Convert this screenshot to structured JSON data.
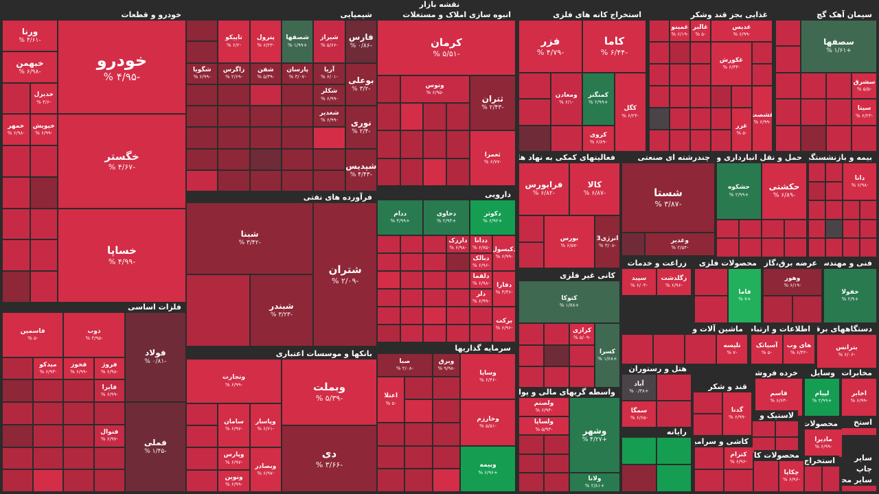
{
  "title": "نقشه بازار",
  "colors": {
    "background": "#2b2b2b",
    "strong_negative": "#d32d47",
    "negative": "#b2283f",
    "weak_negative": "#8e2737",
    "neutral": "#4a4448",
    "positive": "#2a7a50",
    "strong_positive": "#159e52"
  },
  "sectors": [
    {
      "title": "خودرو و قطعات",
      "tiles": [
        {
          "name": "خودرو",
          "pct": "-۴/۹۵ %"
        },
        {
          "name": "خگستر",
          "pct": "-۴/۶۷ %"
        },
        {
          "name": "خساپا",
          "pct": "-۴/۹۹ %"
        },
        {
          "name": "ورنا",
          "pct": "-۴/۶۱ %"
        },
        {
          "name": "خبهمن",
          "pct": "-۶/۹۸ %"
        },
        {
          "name": "خدیزل",
          "pct": "-۴/۶ %"
        },
        {
          "name": "خپویش",
          "pct": "-۶/۹۹ %"
        },
        {
          "name": "خمهر",
          "pct": "-۶/۹۸ %"
        }
      ]
    },
    {
      "title": "شیمیایی",
      "tiles": [
        {
          "name": "فارس",
          "pct": "-۰/۸۶ %"
        },
        {
          "name": "بوعلی",
          "pct": "-۳/۲ %"
        },
        {
          "name": "نوری",
          "pct": "-۲/۴ %"
        },
        {
          "name": "شپدیس",
          "pct": "-۴/۴۳ %"
        },
        {
          "name": "شیراز",
          "pct": "-۵/۶۶ %"
        },
        {
          "name": "شصفها",
          "pct": "+۱/۹۹ %"
        },
        {
          "name": "پترول",
          "pct": "-۶/۲۳ %"
        },
        {
          "name": "تاپیکو",
          "pct": "-۶/۲ %"
        },
        {
          "name": "آریا",
          "pct": "-۶/۰۱ %"
        },
        {
          "name": "پارسان",
          "pct": "-۳/۰۷ %"
        },
        {
          "name": "شفن",
          "pct": "-۵/۳۹ %"
        },
        {
          "name": "زاگرس",
          "pct": "-۲/۶۹ %"
        },
        {
          "name": "شگویا",
          "pct": "-۶/۹۹ %"
        },
        {
          "name": "شکلر",
          "pct": "-۶/۹۹ %"
        },
        {
          "name": "شغدیر",
          "pct": "-۶/۹۹ %"
        }
      ]
    },
    {
      "title": "انبوه سازی املاک و مستغلات",
      "tiles": [
        {
          "name": "کرمان",
          "pct": "-۵/۵۱ %"
        },
        {
          "name": "ثتران",
          "pct": "-۲/۴۳ %"
        },
        {
          "name": "وتوس",
          "pct": "-۶/۹۵ %"
        },
        {
          "name": "ثعمرا",
          "pct": "-۶/۷۷ %"
        }
      ]
    },
    {
      "title": "استخراج کانه های فلزی",
      "tiles": [
        {
          "name": "کاما",
          "pct": "-۶/۴۴ %"
        },
        {
          "name": "فزر",
          "pct": "-۴/۷۹ %"
        },
        {
          "name": "کگل",
          "pct": "-۶/۲۴ %"
        },
        {
          "name": "کمنگنز",
          "pct": "+۲/۹۹ %"
        },
        {
          "name": "ومعادن",
          "pct": "-۶/۱ %"
        },
        {
          "name": "کروی",
          "pct": "-۶/۸۹ %"
        }
      ]
    },
    {
      "title": "غذایی بجز قند وشکر",
      "tiles": [
        {
          "name": "غدیس",
          "pct": "-۶/۹۹ %"
        },
        {
          "name": "غالبر",
          "pct": "-۵ %"
        },
        {
          "name": "غمینو",
          "pct": "-۶/۱۹ %"
        },
        {
          "name": "غکورش",
          "pct": "-۶/۳۴ %"
        },
        {
          "name": "غشصت",
          "pct": "-۶/۹۹ %"
        },
        {
          "name": "غزر",
          "pct": "-۵ %"
        }
      ]
    },
    {
      "title": "سیمان آهک گچ",
      "tiles": [
        {
          "name": "سصفها",
          "pct": "+۱/۶۱ %"
        },
        {
          "name": "سشرق",
          "pct": "-۵/۵ %"
        },
        {
          "name": "سیتا",
          "pct": "-۶/۲۳ %"
        }
      ]
    },
    {
      "title": "فرآورده های نفتی",
      "tiles": [
        {
          "name": "شتران",
          "pct": "-۲/۰۹ %"
        },
        {
          "name": "شبنا",
          "pct": "-۳/۴۲ %"
        },
        {
          "name": "شبندر",
          "pct": "-۳/۲۳ %"
        }
      ]
    },
    {
      "title": "دارویی",
      "tiles": [
        {
          "name": "دکوثر",
          "pct": "+۶/۹۲ %"
        },
        {
          "name": "دحاوی",
          "pct": "+۲/۹۴ %"
        },
        {
          "name": "ددام",
          "pct": "+۴/۹۹ %"
        },
        {
          "name": "دکیسول",
          "pct": "-۶/۹۹ %"
        },
        {
          "name": "ددانا",
          "pct": "-۶/۷۵ %"
        },
        {
          "name": "دارزک",
          "pct": "-۶/۹۸ %"
        },
        {
          "name": "دفارا",
          "pct": "-۳/۳۶ %"
        },
        {
          "name": "دبالک",
          "pct": "-۶/۹۶ %"
        },
        {
          "name": "دلقما",
          "pct": "-۶/۹۸ %"
        },
        {
          "name": "برکت",
          "pct": "-۶/۹۶ %"
        },
        {
          "name": "دلر",
          "pct": "-۶/۹۹ %"
        }
      ]
    },
    {
      "title": "فعالیتهای کمکی به نهاد های مالی",
      "tiles": [
        {
          "name": "کالا",
          "pct": "-۶/۸۷ %"
        },
        {
          "name": "فرابورس",
          "pct": "-۶/۸۲ %"
        },
        {
          "name": "انرژی3",
          "pct": "-۳/۰۸ %"
        },
        {
          "name": "بورس",
          "pct": "-۶/۵۷ %"
        }
      ]
    },
    {
      "title": "چندرشته ای صنعتی",
      "tiles": [
        {
          "name": "شستا",
          "pct": "-۳/۸۷ %"
        },
        {
          "name": "وغدیر",
          "pct": "-۲/۵۴ %"
        }
      ]
    },
    {
      "title": "حمل و نقل انبارداری و",
      "tiles": [
        {
          "name": "حکشتی",
          "pct": "-۶/۸۹ %"
        },
        {
          "name": "حشکوه",
          "pct": "+۲/۹۹ %"
        }
      ]
    },
    {
      "title": "بیمه و بازنشستگی",
      "tiles": [
        {
          "name": "دانا",
          "pct": "-۶/۹۸ %"
        }
      ]
    },
    {
      "title": "فلزات اساسی",
      "tiles": [
        {
          "name": "فولاد",
          "pct": "-۰/۸۱ %"
        },
        {
          "name": "فملی",
          "pct": "-۱/۴۵ %"
        },
        {
          "name": "ذوب",
          "pct": "-۴/۹۵ %"
        },
        {
          "name": "فاسمین",
          "pct": "-۵ %"
        },
        {
          "name": "فروژ",
          "pct": "-۶/۹۸ %"
        },
        {
          "name": "فخوز",
          "pct": "-۶/۹۹ %"
        },
        {
          "name": "میدکو",
          "pct": "-۶/۹۳ %"
        },
        {
          "name": "فایرا",
          "pct": "-۶/۹۹ %"
        },
        {
          "name": "فنوال",
          "pct": "-۶/۹۷ %"
        }
      ]
    },
    {
      "title": "بانکها و موسسات اعتباری",
      "tiles": [
        {
          "name": "وبملت",
          "pct": "-۵/۳۹ %"
        },
        {
          "name": "وتجارت",
          "pct": "-۶/۹۹ %"
        },
        {
          "name": "دی",
          "pct": "-۳/۶۶ %"
        },
        {
          "name": "وپاسار",
          "pct": "-۶/۶۱ %"
        },
        {
          "name": "سامان",
          "pct": "-۶/۹۷ %"
        },
        {
          "name": "وپارس",
          "pct": "-۶/۹۷ %"
        },
        {
          "name": "وبصادر",
          "pct": "-۶/۹۷ %"
        },
        {
          "name": "ونوین",
          "pct": "-۶/۹۹ %"
        }
      ]
    },
    {
      "title": "سرمایه گذاریها",
      "tiles": [
        {
          "name": "وسایا",
          "pct": "-۶/۴۶ %"
        },
        {
          "name": "وبرق",
          "pct": "-۹/۹۸ %"
        },
        {
          "name": "صبا",
          "pct": "-۲/۰۸ %"
        },
        {
          "name": "وخارزم",
          "pct": "-۵/۵۱ %"
        },
        {
          "name": "اعتلا",
          "pct": "-۵ %"
        },
        {
          "name": "وبیمه",
          "pct": "+۶/۹۶ %"
        }
      ]
    },
    {
      "title": "کانی غیر فلزی",
      "tiles": [
        {
          "name": "کتوکا",
          "pct": "+۱/۷۸ %"
        },
        {
          "name": "کسرا",
          "pct": "+۱/۶۸ %"
        },
        {
          "name": "کرازی",
          "pct": "-۵/۰۹ %"
        }
      ]
    },
    {
      "title": "واسطه گریهای مالی و پولی",
      "tiles": [
        {
          "name": "وشهر",
          "pct": "+۴/۲۷ %"
        },
        {
          "name": "ولصنم",
          "pct": "-۶/۹۴ %"
        },
        {
          "name": "ولساپا",
          "pct": "-۵/۹۳ %"
        },
        {
          "name": "ولانا",
          "pct": "+۲/۸۱ %"
        }
      ]
    },
    {
      "title": "زراعت و خدمات",
      "tiles": [
        {
          "name": "زگلدشت",
          "pct": "-۶/۹۶ %"
        },
        {
          "name": "سپید",
          "pct": "-۶/۰۴ %"
        }
      ]
    },
    {
      "title": "محصولات فلزی",
      "tiles": [
        {
          "name": "فاما",
          "pct": "+۷ %"
        }
      ]
    },
    {
      "title": "عرضه برق،گاز،بخار",
      "tiles": [
        {
          "name": "وهور",
          "pct": "-۶/۱۹ %"
        }
      ]
    },
    {
      "title": "فنی و مهندسی",
      "tiles": [
        {
          "name": "خفولا",
          "pct": "+۲/۹ %"
        }
      ]
    },
    {
      "title": "ماشین آلات و",
      "tiles": [
        {
          "name": "تلیسه",
          "pct": "-۷ %"
        }
      ]
    },
    {
      "title": "اطلاعات و ارتباطات",
      "tiles": [
        {
          "name": "های وب",
          "pct": "-۶/۴۲ %"
        },
        {
          "name": "آسیاتک",
          "pct": "-۵ %"
        }
      ]
    },
    {
      "title": "دستگاههای برقی",
      "tiles": [
        {
          "name": "بترانس",
          "pct": "-۶/۰۶ %"
        }
      ]
    },
    {
      "title": "هتل و رستوران",
      "tiles": [
        {
          "name": "آباد",
          "pct": "+۰/۳۸ %"
        },
        {
          "name": "سمگا",
          "pct": "-۶/۶۵ %"
        }
      ]
    },
    {
      "title": "قند و شکر",
      "tiles": [
        {
          "name": "گدنا",
          "pct": "-۶/۹۹ %"
        }
      ]
    },
    {
      "title": "خرده فروشی",
      "tiles": [
        {
          "name": "قاسم",
          "pct": "-۶/۶۴ %"
        }
      ]
    },
    {
      "title": "وسایل",
      "tiles": [
        {
          "name": "لپیام",
          "pct": "+۲/۹۹ %"
        }
      ]
    },
    {
      "title": "مخابرات",
      "tiles": [
        {
          "name": "اخابر",
          "pct": "-۶/۹۹ %"
        }
      ]
    },
    {
      "title": "لاستیک و",
      "tiles": []
    },
    {
      "title": "استخ",
      "tiles": []
    },
    {
      "title": "رایانه",
      "tiles": []
    },
    {
      "title": "کاشی و سرامیک",
      "tiles": [
        {
          "name": "کترام",
          "pct": "-۶/۹۶ %"
        }
      ]
    },
    {
      "title": "محصولات کاغذی",
      "tiles": [
        {
          "name": "چکاپا",
          "pct": "-۶/۹۶ %"
        }
      ]
    },
    {
      "title": "محصولات",
      "tiles": [
        {
          "name": "مادیرا",
          "pct": "-۶/۹۹ %"
        }
      ]
    },
    {
      "title": "استخراج",
      "tiles": []
    },
    {
      "title": "ساير",
      "tiles": []
    },
    {
      "title": "چاپ",
      "tiles": []
    },
    {
      "title": "ساير محصوا",
      "tiles": []
    }
  ]
}
